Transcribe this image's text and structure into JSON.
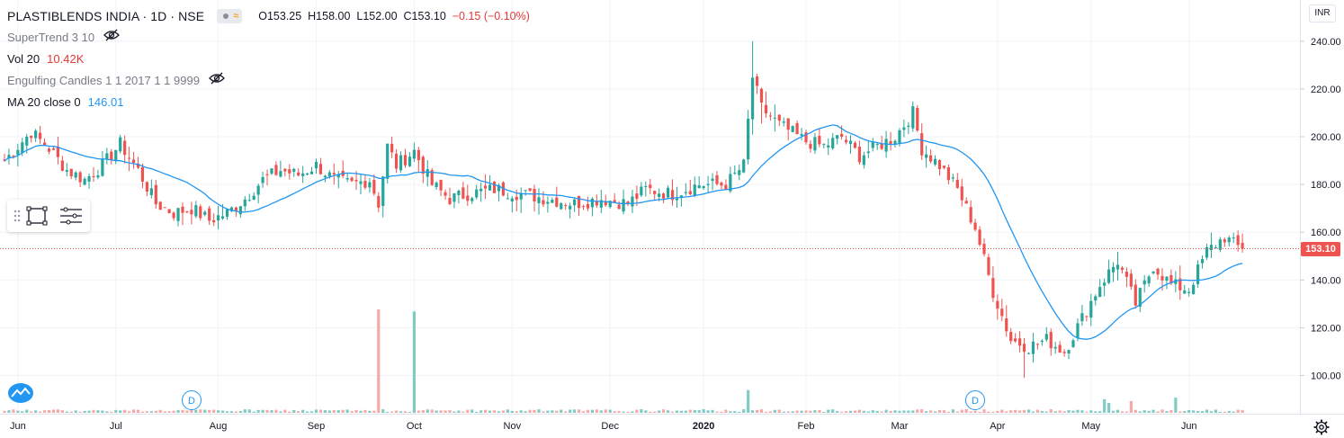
{
  "header": {
    "symbol": "PLASTIBLENDS INDIA · 1D · NSE",
    "ohlc": {
      "open": "O153.25",
      "high": "H158.00",
      "low": "L152.00",
      "close": "C153.10",
      "change": "−0.15 (−0.10%)"
    }
  },
  "indicators": {
    "supertrend": {
      "label": "SuperTrend 3 10",
      "icon": "eye-hidden-icon"
    },
    "volume": {
      "label": "Vol 20",
      "value": "10.42K"
    },
    "engulfing": {
      "label": "Engulfing Candles 1 1 2017 1 1 9999",
      "icon": "eye-hidden-icon"
    },
    "ma": {
      "label": "MA 20 close 0",
      "value": "146.01"
    }
  },
  "currency": "INR",
  "last_price": "153.10",
  "dividend_marker": "D",
  "colors": {
    "up": "#26a69a",
    "down": "#ef5350",
    "ma": "#2196f3",
    "grid": "#f0f3fa",
    "up_vol": "#80cbc4",
    "down_vol": "#f7a9a7"
  },
  "chart_data": {
    "type": "candlestick",
    "y_axis": {
      "min": 80,
      "max": 250,
      "ticks": [
        "100.00",
        "120.00",
        "140.00",
        "160.00",
        "180.00",
        "200.00",
        "220.00",
        "240.00"
      ],
      "tick_values": [
        100,
        120,
        140,
        160,
        180,
        200,
        220,
        240
      ]
    },
    "x_axis": {
      "labels": [
        "Jun",
        "Jul",
        "Aug",
        "Sep",
        "Oct",
        "Nov",
        "Dec",
        "2020",
        "Feb",
        "Mar",
        "Apr",
        "May",
        "Jun"
      ],
      "label_bar_index": [
        3,
        25,
        48,
        70,
        92,
        114,
        136,
        157,
        180,
        201,
        223,
        244,
        266
      ]
    },
    "last_close": 153.1,
    "dividends_bar_index": [
      41,
      208
    ],
    "volume_spikes": [
      {
        "bar": 84,
        "dir": "up",
        "rel": 1.0
      },
      {
        "bar": 92,
        "dir": "down",
        "rel": 0.98
      },
      {
        "bar": 167,
        "dir": "down",
        "rel": 0.22
      }
    ],
    "anchors": [
      [
        0,
        190
      ],
      [
        3,
        196
      ],
      [
        6,
        202
      ],
      [
        10,
        195
      ],
      [
        14,
        186
      ],
      [
        18,
        182
      ],
      [
        22,
        188
      ],
      [
        26,
        197
      ],
      [
        30,
        186
      ],
      [
        34,
        172
      ],
      [
        38,
        168
      ],
      [
        42,
        170
      ],
      [
        46,
        165
      ],
      [
        50,
        168
      ],
      [
        54,
        174
      ],
      [
        58,
        182
      ],
      [
        62,
        186
      ],
      [
        66,
        184
      ],
      [
        70,
        188
      ],
      [
        74,
        182
      ],
      [
        78,
        180
      ],
      [
        82,
        182
      ],
      [
        84,
        172
      ],
      [
        86,
        196
      ],
      [
        88,
        188
      ],
      [
        92,
        194
      ],
      [
        96,
        180
      ],
      [
        100,
        174
      ],
      [
        104,
        176
      ],
      [
        110,
        178
      ],
      [
        116,
        176
      ],
      [
        122,
        174
      ],
      [
        128,
        172
      ],
      [
        134,
        174
      ],
      [
        140,
        172
      ],
      [
        144,
        178
      ],
      [
        150,
        176
      ],
      [
        156,
        180
      ],
      [
        162,
        180
      ],
      [
        166,
        188
      ],
      [
        168,
        225
      ],
      [
        170,
        212
      ],
      [
        174,
        205
      ],
      [
        180,
        198
      ],
      [
        184,
        196
      ],
      [
        188,
        200
      ],
      [
        192,
        192
      ],
      [
        196,
        196
      ],
      [
        200,
        200
      ],
      [
        204,
        210
      ],
      [
        206,
        195
      ],
      [
        210,
        188
      ],
      [
        214,
        178
      ],
      [
        218,
        162
      ],
      [
        222,
        135
      ],
      [
        226,
        115
      ],
      [
        230,
        112
      ],
      [
        234,
        115
      ],
      [
        238,
        110
      ],
      [
        242,
        124
      ],
      [
        246,
        138
      ],
      [
        250,
        148
      ],
      [
        254,
        130
      ],
      [
        258,
        146
      ],
      [
        262,
        138
      ],
      [
        266,
        136
      ],
      [
        270,
        152
      ],
      [
        274,
        158
      ],
      [
        276,
        155
      ],
      [
        278,
        153
      ]
    ]
  }
}
